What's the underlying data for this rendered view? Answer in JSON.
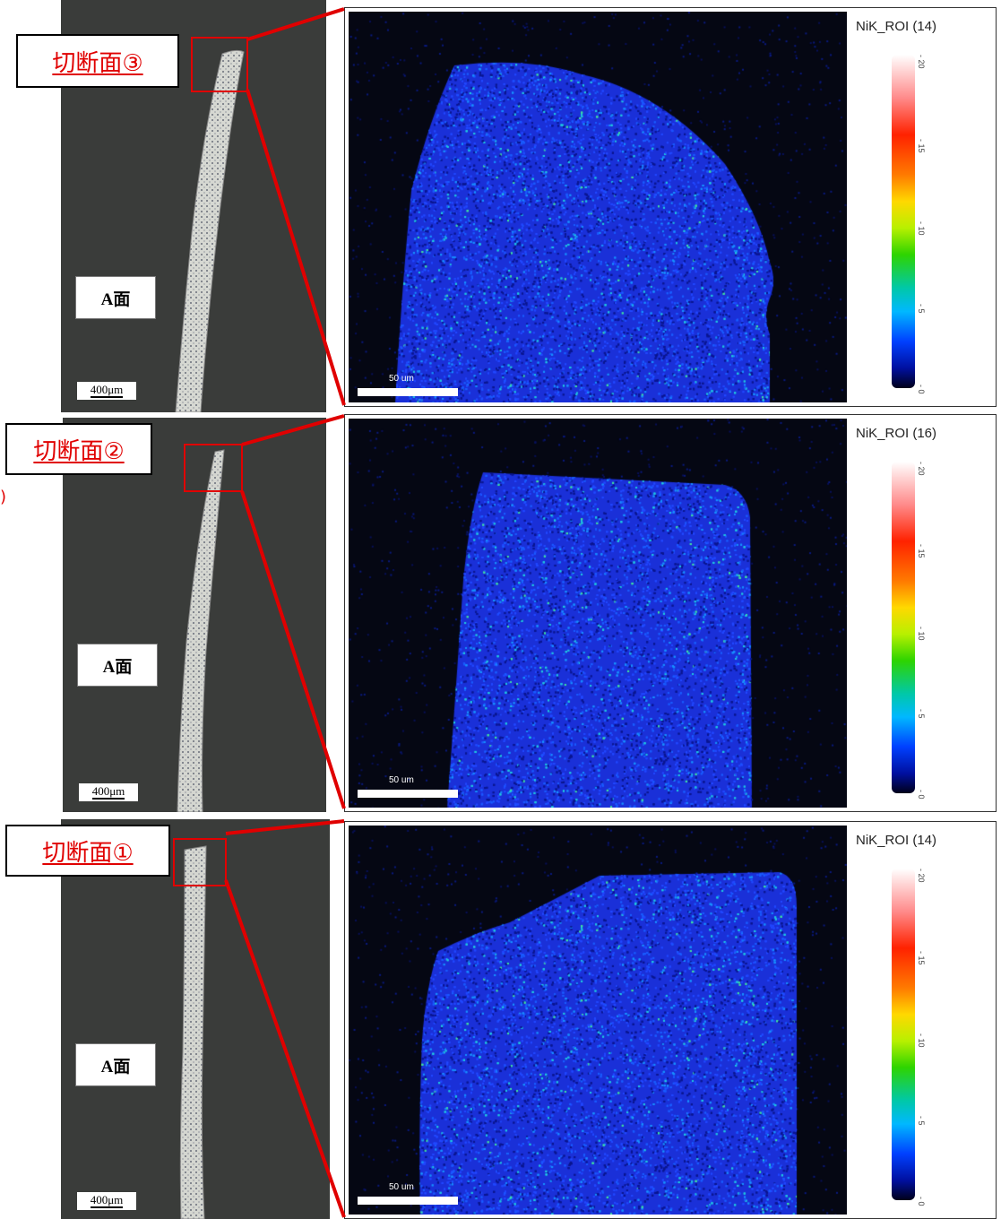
{
  "panels": [
    {
      "tag": "切断面③",
      "face_label": "A面",
      "scale_label": "400μm",
      "map_scale_label": "50 um",
      "legend_title": "NiK_ROI (14)",
      "colorbar_ticks": [
        "20",
        "15",
        "10",
        "5",
        "0"
      ]
    },
    {
      "tag": "切断面②",
      "face_label": "A面",
      "scale_label": "400μm",
      "map_scale_label": "50 um",
      "legend_title": "NiK_ROI (16)",
      "colorbar_ticks": [
        "20",
        "15",
        "10",
        "5",
        "0"
      ]
    },
    {
      "tag": "切断面①",
      "face_label": "A面",
      "scale_label": "400μm",
      "map_scale_label": "50 um",
      "legend_title": "NiK_ROI (14)",
      "colorbar_ticks": [
        "20",
        "15",
        "10",
        "5",
        "0"
      ]
    }
  ],
  "colors": {
    "accent_red": "#e00000",
    "micrograph_bg": "#3a3c3a",
    "map_bg": "#050713",
    "map_signal": "#1a3cff"
  }
}
